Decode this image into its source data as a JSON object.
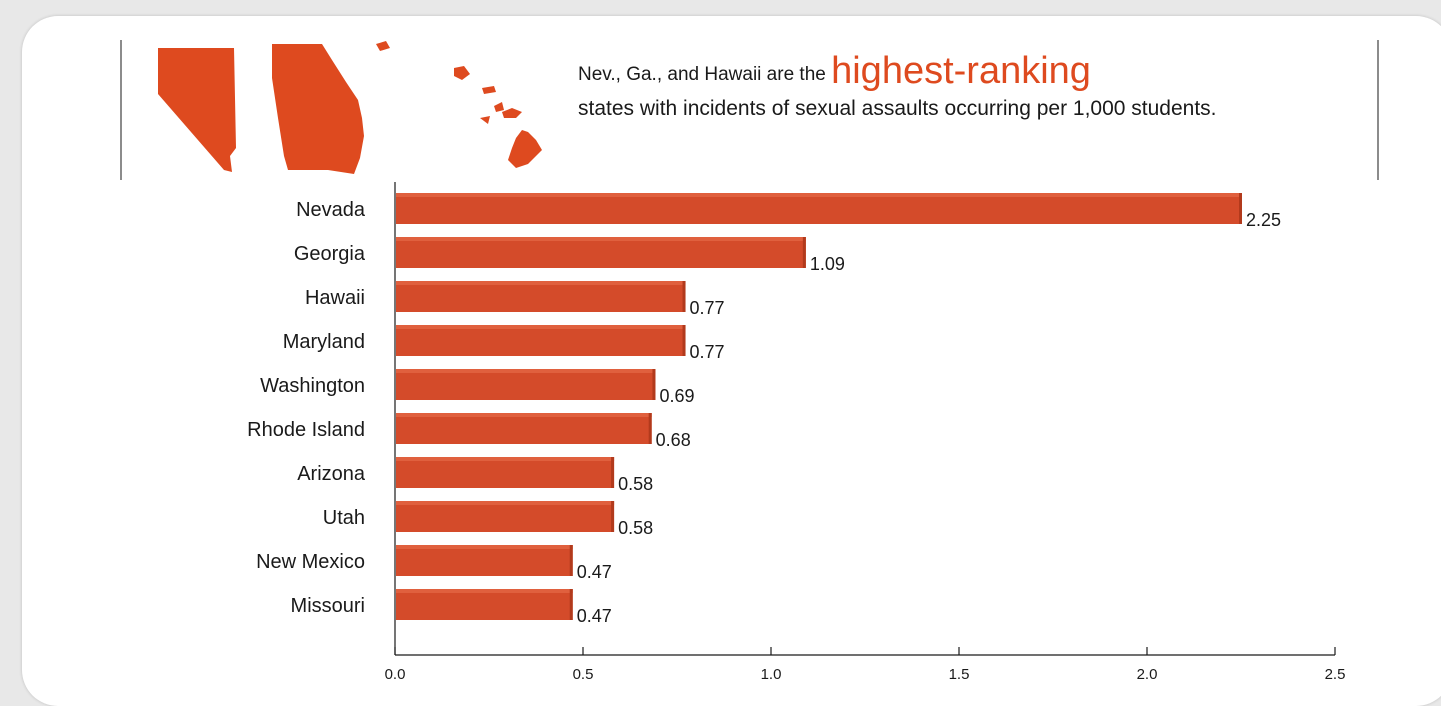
{
  "header": {
    "line1_prefix": "Nev., Ga., and Hawaii are the",
    "line1_emphasis": "highest-ranking",
    "line2": "states with incidents of sexual assaults occurring per 1,000 students."
  },
  "icons": [
    "nevada-shape",
    "georgia-shape",
    "hawaii-islands-shape"
  ],
  "colors": {
    "bar": "#d44b2a",
    "bar_edge": "#b23a1c",
    "accent": "#de4a1f",
    "rule": "#8c8c8c"
  },
  "chart_data": {
    "type": "bar",
    "orientation": "horizontal",
    "categories": [
      "Nevada",
      "Georgia",
      "Hawaii",
      "Maryland",
      "Washington",
      "Rhode Island",
      "Arizona",
      "Utah",
      "New Mexico",
      "Missouri"
    ],
    "values": [
      2.25,
      1.09,
      0.77,
      0.77,
      0.69,
      0.68,
      0.58,
      0.58,
      0.47,
      0.47
    ],
    "value_labels": [
      "2.25",
      "1.09",
      "0.77",
      "0.77",
      "0.69",
      "0.68",
      "0.58",
      "0.58",
      "0.47",
      "0.47"
    ],
    "xlim": [
      0,
      2.5
    ],
    "xticks": [
      0.0,
      0.5,
      1.0,
      1.5,
      2.0,
      2.5
    ],
    "xtick_labels": [
      "0.0",
      "0.5",
      "1.0",
      "1.5",
      "2.0",
      "2.5"
    ],
    "grid": false,
    "legend": "none"
  }
}
